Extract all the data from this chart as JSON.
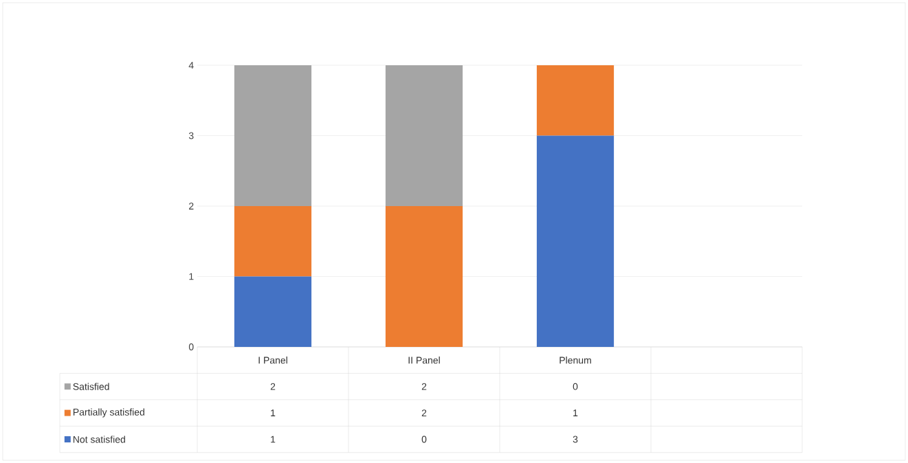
{
  "chart_data": {
    "type": "bar",
    "stacked": true,
    "categories": [
      "I Panel",
      "II Panel",
      "Plenum",
      null
    ],
    "series": [
      {
        "name": "Not satisfied",
        "color": "#4472c4",
        "values": [
          1,
          0,
          3,
          null
        ]
      },
      {
        "name": "Partially satisfied",
        "color": "#ed7d31",
        "values": [
          1,
          2,
          1,
          null
        ]
      },
      {
        "name": "Satisfied",
        "color": "#a5a5a5",
        "values": [
          2,
          2,
          0,
          null
        ]
      }
    ],
    "ylim": [
      0,
      4
    ],
    "yticks": [
      0,
      1,
      2,
      3,
      4
    ],
    "grid": "y",
    "data_labels": true,
    "legend": "bottom left"
  }
}
